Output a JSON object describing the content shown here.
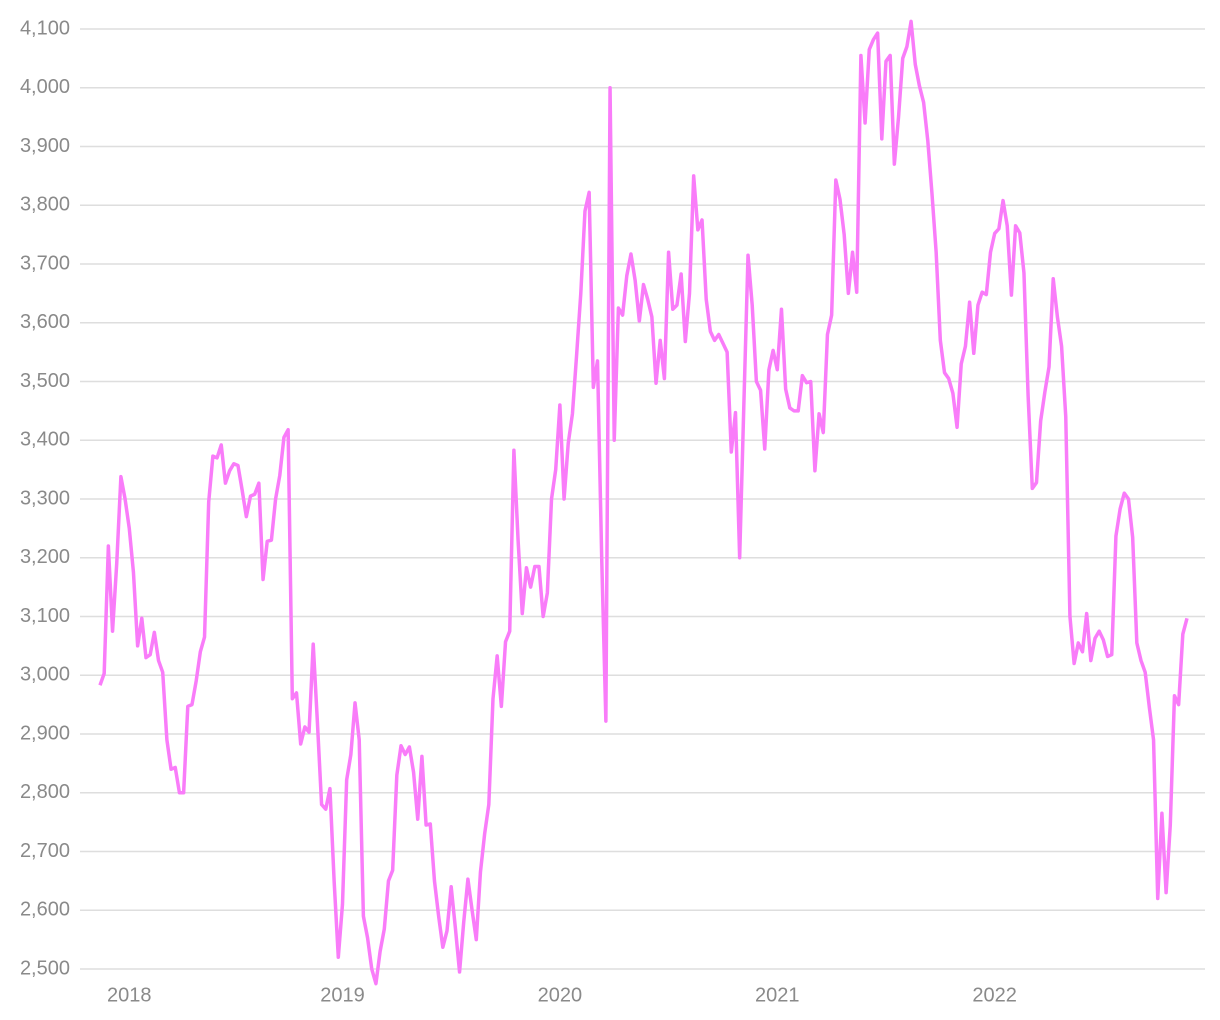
{
  "chart_data": {
    "type": "line",
    "categories": [
      null,
      null,
      null,
      null,
      null,
      null,
      null,
      "2018",
      null,
      null,
      null,
      null,
      null,
      null,
      null,
      null,
      null,
      null,
      null,
      null,
      null,
      null,
      null,
      null,
      null,
      null,
      null,
      null,
      null,
      null,
      null,
      null,
      null,
      null,
      null,
      null,
      null,
      null,
      null,
      null,
      null,
      null,
      null,
      null,
      null,
      null,
      null,
      null,
      null,
      null,
      null,
      null,
      null,
      null,
      null,
      null,
      null,
      null,
      "2019",
      null,
      null,
      null,
      null,
      null,
      null,
      null,
      null,
      null,
      null,
      null,
      null,
      null,
      null,
      null,
      null,
      null,
      null,
      null,
      null,
      null,
      null,
      null,
      null,
      null,
      null,
      null,
      null,
      null,
      null,
      null,
      null,
      null,
      null,
      null,
      null,
      null,
      null,
      null,
      null,
      null,
      null,
      null,
      null,
      null,
      null,
      null,
      null,
      null,
      null,
      null,
      "2020",
      null,
      null,
      null,
      null,
      null,
      null,
      null,
      null,
      null,
      null,
      null,
      null,
      null,
      null,
      null,
      null,
      null,
      null,
      null,
      null,
      null,
      null,
      null,
      null,
      null,
      null,
      null,
      null,
      null,
      null,
      null,
      null,
      null,
      null,
      null,
      null,
      null,
      null,
      null,
      null,
      null,
      null,
      null,
      null,
      null,
      null,
      null,
      null,
      null,
      null,
      null,
      "2021",
      null,
      null,
      null,
      null,
      null,
      null,
      null,
      null,
      null,
      null,
      null,
      null,
      null,
      null,
      null,
      null,
      null,
      null,
      null,
      null,
      null,
      null,
      null,
      null,
      null,
      null,
      null,
      null,
      null,
      null,
      null,
      null,
      null,
      null,
      null,
      null,
      null,
      null,
      null,
      null,
      null,
      null,
      null,
      null,
      null,
      null,
      null,
      null,
      null,
      null,
      null,
      "2022",
      null,
      null,
      null,
      null,
      null,
      null,
      null,
      null,
      null,
      null,
      null,
      null,
      null,
      null,
      null,
      null,
      null,
      null,
      null,
      null,
      null,
      null,
      null,
      null,
      null,
      null,
      null,
      null,
      null,
      null,
      null,
      null,
      null,
      null,
      null,
      null,
      null,
      null,
      null,
      null,
      null,
      null,
      null,
      null,
      null,
      null
    ],
    "series": [
      {
        "color": "#f97cf9",
        "values": [
          2983,
          3003,
          3220,
          3075,
          3190,
          3338,
          3300,
          3250,
          3175,
          3050,
          3097,
          3030,
          3035,
          3073,
          3025,
          3005,
          2890,
          2840,
          2843,
          2800,
          2800,
          2947,
          2950,
          2990,
          3040,
          3065,
          3295,
          3373,
          3370,
          3392,
          3327,
          3348,
          3360,
          3357,
          3315,
          3270,
          3305,
          3308,
          3327,
          3163,
          3228,
          3230,
          3300,
          3340,
          3405,
          3418,
          2960,
          2970,
          2883,
          2912,
          2903,
          3053,
          2920,
          2780,
          2772,
          2807,
          2650,
          2520,
          2610,
          2822,
          2865,
          2953,
          2890,
          2590,
          2553,
          2500,
          2475,
          2530,
          2568,
          2650,
          2668,
          2830,
          2880,
          2865,
          2878,
          2835,
          2755,
          2862,
          2745,
          2747,
          2650,
          2590,
          2537,
          2565,
          2640,
          2570,
          2495,
          2580,
          2653,
          2600,
          2550,
          2665,
          2730,
          2780,
          2960,
          3033,
          2947,
          3057,
          3075,
          3383,
          3230,
          3105,
          3183,
          3150,
          3185,
          3185,
          3100,
          3140,
          3300,
          3350,
          3460,
          3300,
          3395,
          3445,
          3545,
          3650,
          3790,
          3822,
          3490,
          3535,
          3200,
          2922,
          4000,
          3400,
          3625,
          3613,
          3680,
          3717,
          3672,
          3603,
          3665,
          3640,
          3610,
          3497,
          3570,
          3505,
          3720,
          3623,
          3630,
          3683,
          3568,
          3650,
          3850,
          3758,
          3775,
          3640,
          3585,
          3570,
          3580,
          3565,
          3550,
          3380,
          3447,
          3200,
          3460,
          3715,
          3630,
          3500,
          3485,
          3385,
          3520,
          3553,
          3520,
          3623,
          3487,
          3455,
          3450,
          3450,
          3510,
          3498,
          3500,
          3348,
          3445,
          3413,
          3580,
          3613,
          3843,
          3810,
          3750,
          3650,
          3720,
          3652,
          4055,
          3940,
          4065,
          4082,
          4093,
          3913,
          4045,
          4055,
          3870,
          3950,
          4050,
          4070,
          4113,
          4040,
          4003,
          3975,
          3910,
          3820,
          3720,
          3570,
          3515,
          3505,
          3480,
          3422,
          3530,
          3560,
          3635,
          3548,
          3630,
          3652,
          3648,
          3720,
          3752,
          3760,
          3808,
          3765,
          3647,
          3765,
          3753,
          3685,
          3475,
          3318,
          3328,
          3433,
          3482,
          3525,
          3675,
          3610,
          3560,
          3440,
          3100,
          3020,
          3055,
          3040,
          3105,
          3025,
          3063,
          3075,
          3060,
          3032,
          3035,
          3237,
          3283,
          3310,
          3300,
          3235,
          3055,
          3025,
          3005,
          2945,
          2890,
          2620,
          2765,
          2630,
          2745,
          2965,
          2950,
          3070,
          3097
        ]
      }
    ],
    "ylim": [
      2500,
      4100
    ],
    "yticks": [
      {
        "value": 2500,
        "label": "2,500"
      },
      {
        "value": 2600,
        "label": "2,600"
      },
      {
        "value": 2700,
        "label": "2,700"
      },
      {
        "value": 2800,
        "label": "2,800"
      },
      {
        "value": 2900,
        "label": "2,900"
      },
      {
        "value": 3000,
        "label": "3,000"
      },
      {
        "value": 3100,
        "label": "3,100"
      },
      {
        "value": 3200,
        "label": "3,200"
      },
      {
        "value": 3300,
        "label": "3,300"
      },
      {
        "value": 3400,
        "label": "3,400"
      },
      {
        "value": 3500,
        "label": "3,500"
      },
      {
        "value": 3600,
        "label": "3,600"
      },
      {
        "value": 3700,
        "label": "3,700"
      },
      {
        "value": 3800,
        "label": "3,800"
      },
      {
        "value": 3900,
        "label": "3,900"
      },
      {
        "value": 4000,
        "label": "4,000"
      },
      {
        "value": 4100,
        "label": "4,100"
      }
    ],
    "grid": true
  }
}
